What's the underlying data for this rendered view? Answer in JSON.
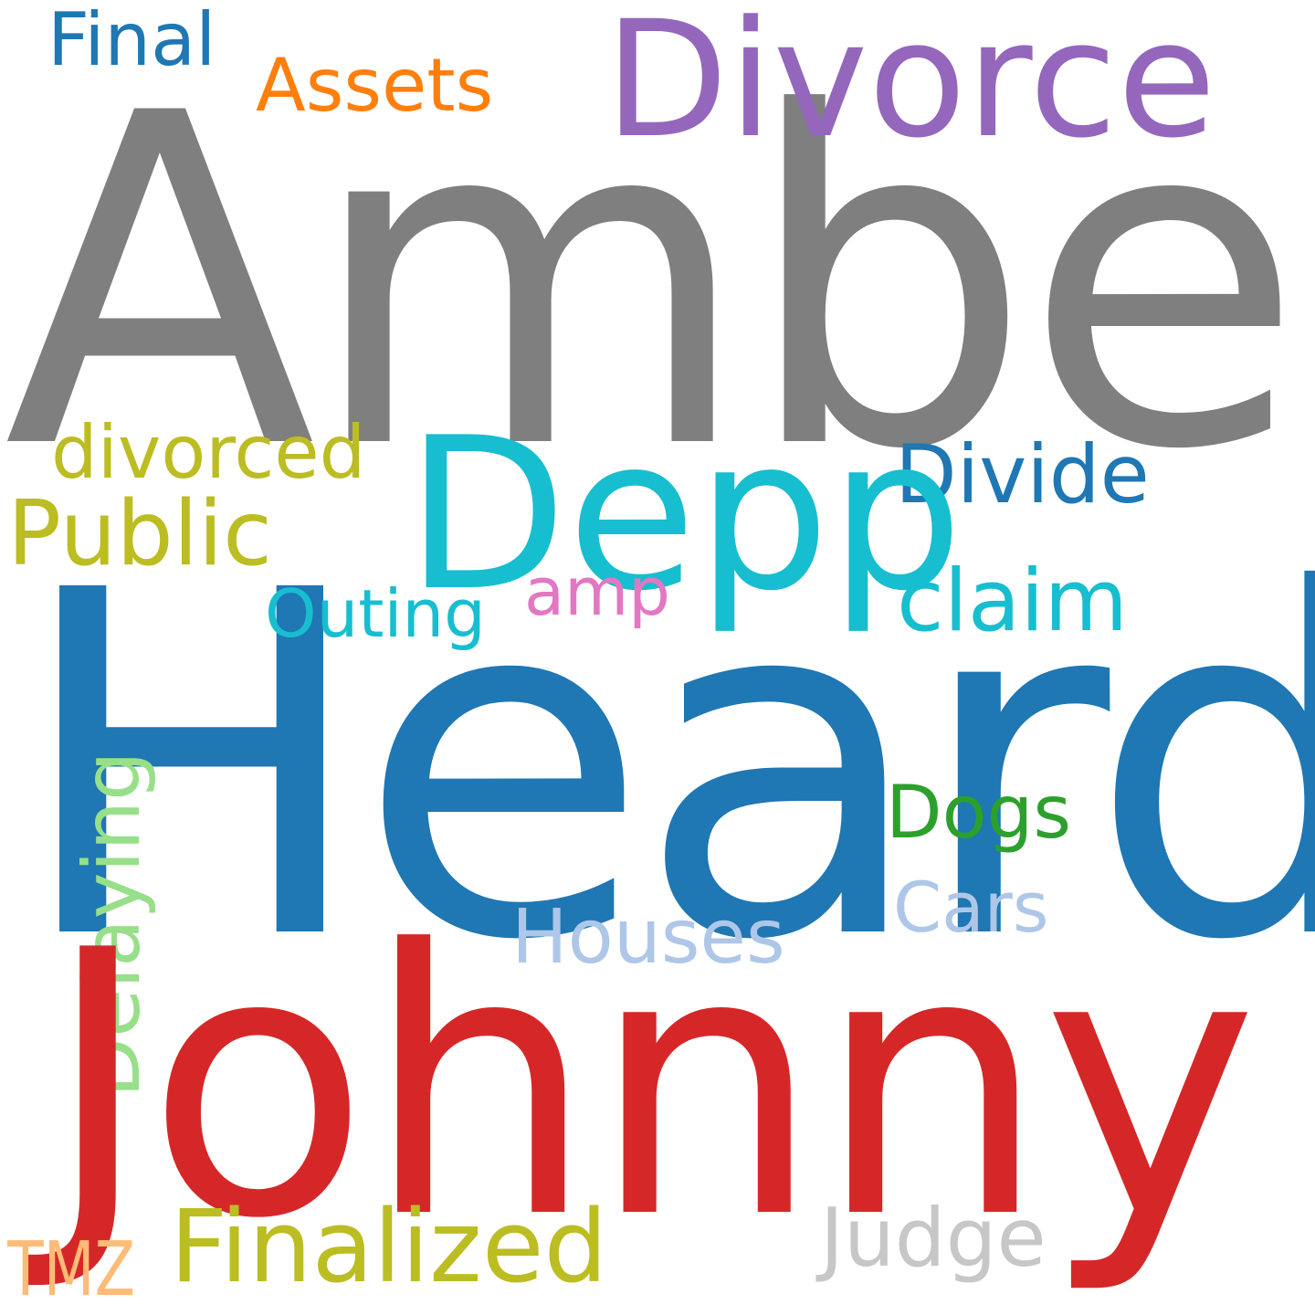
{
  "words": {
    "amber": {
      "text": "Amber",
      "color": "#7f7f7f"
    },
    "heard": {
      "text": "Heard",
      "color": "#1f77b4"
    },
    "johnny": {
      "text": "Johnny",
      "color": "#d62728"
    },
    "divorce": {
      "text": "Divorce",
      "color": "#9467bd"
    },
    "depp": {
      "text": "Depp",
      "color": "#17becf"
    },
    "final": {
      "text": "Final",
      "color": "#1f77b4"
    },
    "assets": {
      "text": "Assets",
      "color": "#ff7f0e"
    },
    "divorced": {
      "text": "divorced",
      "color": "#bcbd22"
    },
    "public": {
      "text": "Public",
      "color": "#bcbd22"
    },
    "divide": {
      "text": "Divide",
      "color": "#1f77b4"
    },
    "claim": {
      "text": "claim",
      "color": "#17becf"
    },
    "outing": {
      "text": "Outing",
      "color": "#17becf"
    },
    "amp": {
      "text": "amp",
      "color": "#e377c2"
    },
    "dogs": {
      "text": "Dogs",
      "color": "#2ca02c"
    },
    "cars": {
      "text": "Cars",
      "color": "#aec7e8"
    },
    "houses": {
      "text": "Houses",
      "color": "#aec7e8"
    },
    "delaying": {
      "text": "Delaying",
      "color": "#98df8a"
    },
    "finalized": {
      "text": "Finalized",
      "color": "#bcbd22"
    },
    "judge": {
      "text": "Judge",
      "color": "#c7c7c7"
    },
    "tmz": {
      "text": "TMZ",
      "color": "#ffbb78"
    }
  }
}
